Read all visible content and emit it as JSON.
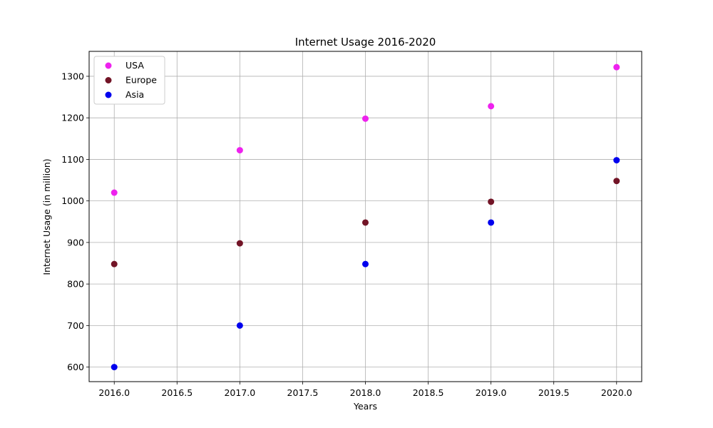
{
  "chart_data": {
    "type": "scatter",
    "title": "Internet Usage 2016-2020",
    "xlabel": "Years",
    "ylabel": "Internet Usage (in million)",
    "xlim": [
      2015.8,
      2020.2
    ],
    "ylim": [
      565,
      1360
    ],
    "xticks": [
      2016.0,
      2016.5,
      2017.0,
      2017.5,
      2018.0,
      2018.5,
      2019.0,
      2019.5,
      2020.0
    ],
    "xtick_labels": [
      "2016.0",
      "2016.5",
      "2017.0",
      "2017.5",
      "2018.0",
      "2018.5",
      "2019.0",
      "2019.5",
      "2020.0"
    ],
    "yticks": [
      600,
      700,
      800,
      900,
      1000,
      1100,
      1200,
      1300
    ],
    "ytick_labels": [
      "600",
      "700",
      "800",
      "900",
      "1000",
      "1100",
      "1200",
      "1300"
    ],
    "grid": true,
    "legend_position": "top-left",
    "series": [
      {
        "name": "USA",
        "color": "#ee22ee",
        "x": [
          2016,
          2017,
          2018,
          2019,
          2020
        ],
        "y": [
          1020,
          1122,
          1198,
          1228,
          1322
        ]
      },
      {
        "name": "Europe",
        "color": "#721426",
        "x": [
          2016,
          2017,
          2018,
          2019,
          2020
        ],
        "y": [
          848,
          898,
          948,
          998,
          1048
        ]
      },
      {
        "name": "Asia",
        "color": "#0000ee",
        "x": [
          2016,
          2017,
          2018,
          2019,
          2020
        ],
        "y": [
          600,
          700,
          848,
          948,
          1098
        ]
      }
    ]
  }
}
